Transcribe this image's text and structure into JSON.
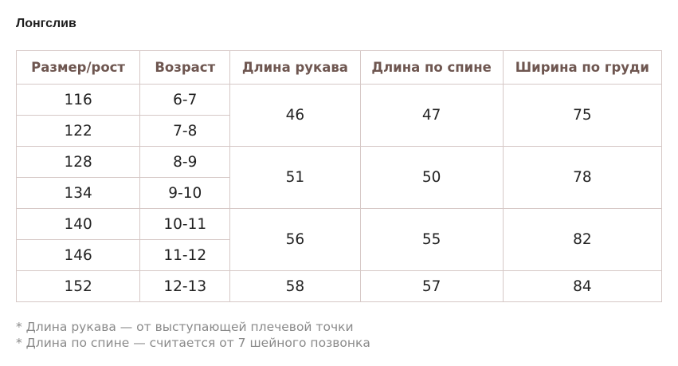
{
  "title": "Лонгслив",
  "table": {
    "headers": [
      "Размер/рост",
      "Возраст",
      "Длина рукава",
      "Длина по спине",
      "Ширина по груди"
    ],
    "rows": [
      {
        "size": "116",
        "age": "6-7"
      },
      {
        "size": "122",
        "age": "7-8"
      },
      {
        "size": "128",
        "age": "8-9"
      },
      {
        "size": "134",
        "age": "9-10"
      },
      {
        "size": "140",
        "age": "10-11"
      },
      {
        "size": "146",
        "age": "11-12"
      },
      {
        "size": "152",
        "age": "12-13"
      }
    ],
    "groups": [
      {
        "sleeve": "46",
        "back": "47",
        "chest": "75"
      },
      {
        "sleeve": "51",
        "back": "50",
        "chest": "78"
      },
      {
        "sleeve": "56",
        "back": "55",
        "chest": "82"
      },
      {
        "sleeve": "58",
        "back": "57",
        "chest": "84"
      }
    ]
  },
  "notes": [
    "* Длина рукава — от выступающей плечевой точки",
    "* Длина по спине — считается от 7 шейного позвонка"
  ],
  "colors": {
    "header_text": "#6e5650",
    "border": "#d6c8c6",
    "note_text": "#8a8a8a"
  }
}
